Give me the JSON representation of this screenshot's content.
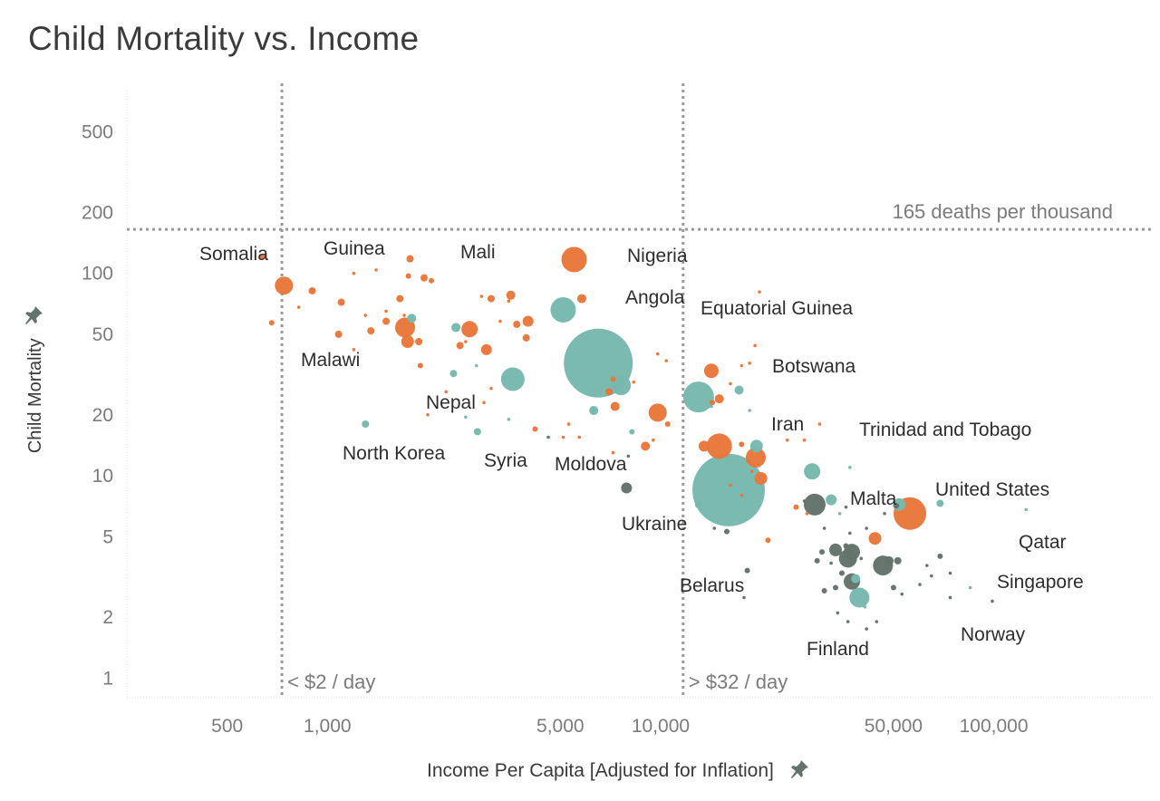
{
  "chart_data": {
    "type": "scatter",
    "title": "Child Mortality vs. Income",
    "xlabel": "Income Per Capita [Adjusted for Inflation]",
    "ylabel": "Child Mortality",
    "x_scale": "log",
    "y_scale": "log",
    "xlim": [
      250,
      300000
    ],
    "ylim": [
      0.8,
      800
    ],
    "x_ticks": [
      {
        "value": 500,
        "label": "500"
      },
      {
        "value": 1000,
        "label": "1,000"
      },
      {
        "value": 5000,
        "label": "5,000"
      },
      {
        "value": 10000,
        "label": "10,000"
      },
      {
        "value": 50000,
        "label": "50,000"
      },
      {
        "value": 100000,
        "label": "100,000"
      }
    ],
    "y_ticks": [
      {
        "value": 1,
        "label": "1"
      },
      {
        "value": 2,
        "label": "2"
      },
      {
        "value": 5,
        "label": "5"
      },
      {
        "value": 10,
        "label": "10"
      },
      {
        "value": 20,
        "label": "20"
      },
      {
        "value": 50,
        "label": "50"
      },
      {
        "value": 100,
        "label": "100"
      },
      {
        "value": 200,
        "label": "200"
      },
      {
        "value": 500,
        "label": "500"
      }
    ],
    "reference_lines": [
      {
        "axis": "x",
        "value": 730,
        "label": "< $2 / day"
      },
      {
        "axis": "x",
        "value": 11680,
        "label": "> $32 / day"
      },
      {
        "axis": "y",
        "value": 165,
        "label": "165 deaths per thousand"
      }
    ],
    "colors": {
      "orange": "#e8763a",
      "teal": "#77b8ad",
      "gray": "#62736a",
      "grid": "#e4e4e4",
      "ref": "#9a9a9a"
    },
    "points": [
      {
        "label": "Somalia",
        "x": 640,
        "y": 121,
        "size": 2,
        "color": "orange"
      },
      {
        "x": 740,
        "y": 87,
        "size": 9,
        "color": "orange"
      },
      {
        "x": 680,
        "y": 57,
        "size": 2,
        "color": "orange"
      },
      {
        "x": 820,
        "y": 68,
        "size": 1,
        "color": "orange"
      },
      {
        "x": 900,
        "y": 82,
        "size": 3,
        "color": "orange"
      },
      {
        "label": "Guinea",
        "x": 1200,
        "y": 100,
        "size": 1,
        "color": "orange"
      },
      {
        "x": 1100,
        "y": 72,
        "size": 3,
        "color": "orange"
      },
      {
        "x": 1300,
        "y": 62,
        "size": 1,
        "color": "orange"
      },
      {
        "x": 1500,
        "y": 58,
        "size": 3,
        "color": "orange"
      },
      {
        "x": 1350,
        "y": 52,
        "size": 3,
        "color": "orange"
      },
      {
        "x": 1500,
        "y": 65,
        "size": 1,
        "color": "orange"
      },
      {
        "x": 1700,
        "y": 62,
        "size": 1,
        "color": "orange"
      },
      {
        "x": 1400,
        "y": 104,
        "size": 1,
        "color": "orange"
      },
      {
        "label": "Mali",
        "x": 1770,
        "y": 118,
        "size": 3,
        "color": "orange"
      },
      {
        "x": 1750,
        "y": 97,
        "size": 2,
        "color": "orange"
      },
      {
        "x": 1950,
        "y": 95,
        "size": 3,
        "color": "orange"
      },
      {
        "x": 2050,
        "y": 92,
        "size": 2,
        "color": "orange"
      },
      {
        "x": 1650,
        "y": 75,
        "size": 3,
        "color": "orange"
      },
      {
        "x": 1790,
        "y": 60,
        "size": 4,
        "color": "teal"
      },
      {
        "x": 1710,
        "y": 54,
        "size": 10,
        "color": "orange"
      },
      {
        "x": 1740,
        "y": 46,
        "size": 6,
        "color": "orange"
      },
      {
        "x": 1880,
        "y": 46,
        "size": 3,
        "color": "orange"
      },
      {
        "label": "Malawi",
        "x": 1080,
        "y": 50,
        "size": 3,
        "color": "orange"
      },
      {
        "x": 1200,
        "y": 42,
        "size": 1,
        "color": "orange"
      },
      {
        "x": 1900,
        "y": 35,
        "size": 2,
        "color": "orange"
      },
      {
        "x": 2430,
        "y": 54,
        "size": 4,
        "color": "teal"
      },
      {
        "x": 2670,
        "y": 53,
        "size": 8,
        "color": "orange"
      },
      {
        "x": 2600,
        "y": 46,
        "size": 1,
        "color": "orange"
      },
      {
        "x": 2500,
        "y": 44,
        "size": 3,
        "color": "orange"
      },
      {
        "x": 3000,
        "y": 42,
        "size": 5,
        "color": "orange"
      },
      {
        "x": 2900,
        "y": 77,
        "size": 1,
        "color": "orange"
      },
      {
        "x": 3100,
        "y": 75,
        "size": 3,
        "color": "orange"
      },
      {
        "x": 3550,
        "y": 78,
        "size": 4,
        "color": "orange"
      },
      {
        "x": 3500,
        "y": 73,
        "size": 1,
        "color": "orange"
      },
      {
        "x": 3300,
        "y": 58,
        "size": 1,
        "color": "orange"
      },
      {
        "x": 3700,
        "y": 56,
        "size": 3,
        "color": "orange"
      },
      {
        "x": 4000,
        "y": 58,
        "size": 5,
        "color": "orange"
      },
      {
        "x": 3950,
        "y": 48,
        "size": 3,
        "color": "orange"
      },
      {
        "x": 3600,
        "y": 30,
        "size": 12,
        "color": "teal"
      },
      {
        "x": 2800,
        "y": 35,
        "size": 1,
        "color": "teal"
      },
      {
        "x": 2390,
        "y": 32,
        "size": 3,
        "color": "teal"
      },
      {
        "label": "Nepal",
        "x": 2270,
        "y": 26,
        "size": 1,
        "color": "orange"
      },
      {
        "x": 3100,
        "y": 27,
        "size": 1,
        "color": "orange"
      },
      {
        "x": 2950,
        "y": 23,
        "size": 1,
        "color": "orange"
      },
      {
        "label": "Syria",
        "x": 2820,
        "y": 16.5,
        "size": 3,
        "color": "teal"
      },
      {
        "x": 2600,
        "y": 19.5,
        "size": 1,
        "color": "teal"
      },
      {
        "x": 3500,
        "y": 19,
        "size": 1,
        "color": "teal"
      },
      {
        "label": "North Korea",
        "x": 1300,
        "y": 18,
        "size": 3,
        "color": "teal"
      },
      {
        "x": 2000,
        "y": 20,
        "size": 1,
        "color": "orange"
      },
      {
        "label": "Nigeria",
        "x": 5500,
        "y": 117,
        "size": 13,
        "color": "orange"
      },
      {
        "label": "Angola",
        "x": 5800,
        "y": 75,
        "size": 4,
        "color": "orange"
      },
      {
        "x": 5100,
        "y": 66,
        "size": 13,
        "color": "teal"
      },
      {
        "x": 4200,
        "y": 17,
        "size": 2,
        "color": "orange"
      },
      {
        "x": 4600,
        "y": 15.5,
        "size": 1,
        "color": "gray"
      },
      {
        "x": 5100,
        "y": 15.5,
        "size": 1,
        "color": "orange"
      },
      {
        "x": 5300,
        "y": 18,
        "size": 1,
        "color": "orange"
      },
      {
        "x": 6500,
        "y": 36,
        "size": 37,
        "color": "teal"
      },
      {
        "x": 7200,
        "y": 30,
        "size": 2,
        "color": "orange"
      },
      {
        "x": 7600,
        "y": 28,
        "size": 10,
        "color": "teal"
      },
      {
        "x": 7000,
        "y": 26,
        "size": 3,
        "color": "orange"
      },
      {
        "x": 7300,
        "y": 22,
        "size": 4,
        "color": "orange"
      },
      {
        "x": 6300,
        "y": 21,
        "size": 4,
        "color": "teal"
      },
      {
        "label": "Moldova",
        "x": 7200,
        "y": 13,
        "size": 1,
        "color": "orange"
      },
      {
        "x": 5700,
        "y": 15.5,
        "size": 1,
        "color": "orange"
      },
      {
        "x": 8000,
        "y": 12.5,
        "size": 1,
        "color": "gray"
      },
      {
        "x": 8200,
        "y": 16.5,
        "size": 2,
        "color": "teal"
      },
      {
        "label": "Ukraine",
        "x": 7900,
        "y": 8.7,
        "size": 5,
        "color": "gray"
      },
      {
        "x": 9000,
        "y": 14,
        "size": 4,
        "color": "orange"
      },
      {
        "x": 9500,
        "y": 15,
        "size": 1,
        "color": "orange"
      },
      {
        "x": 9800,
        "y": 20.5,
        "size": 9,
        "color": "orange"
      },
      {
        "x": 10500,
        "y": 18,
        "size": 2,
        "color": "orange"
      },
      {
        "x": 9800,
        "y": 40,
        "size": 1,
        "color": "orange"
      },
      {
        "x": 10400,
        "y": 37,
        "size": 1,
        "color": "orange"
      },
      {
        "x": 8300,
        "y": 29,
        "size": 1,
        "color": "orange"
      },
      {
        "label": "Equatorial Guinea",
        "x": 19800,
        "y": 81,
        "size": 1,
        "color": "orange"
      },
      {
        "x": 13000,
        "y": 24.5,
        "size": 16,
        "color": "teal"
      },
      {
        "x": 14200,
        "y": 33,
        "size": 7,
        "color": "orange"
      },
      {
        "x": 15000,
        "y": 24,
        "size": 4,
        "color": "orange"
      },
      {
        "x": 14300,
        "y": 23,
        "size": 2,
        "color": "orange"
      },
      {
        "x": 16200,
        "y": 28.5,
        "size": 1,
        "color": "orange"
      },
      {
        "x": 17200,
        "y": 26.5,
        "size": 4,
        "color": "teal"
      },
      {
        "x": 18500,
        "y": 21,
        "size": 1,
        "color": "teal"
      },
      {
        "x": 17500,
        "y": 35,
        "size": 1,
        "color": "orange"
      },
      {
        "label": "Botswana",
        "x": 18500,
        "y": 36,
        "size": 1,
        "color": "orange"
      },
      {
        "x": 19200,
        "y": 44,
        "size": 1,
        "color": "orange"
      },
      {
        "x": 14200,
        "y": 22,
        "size": 1,
        "color": "teal"
      },
      {
        "x": 13500,
        "y": 14,
        "size": 5,
        "color": "orange"
      },
      {
        "x": 15000,
        "y": 14,
        "size": 13,
        "color": "orange"
      },
      {
        "label": "Iran",
        "x": 19400,
        "y": 14,
        "size": 6,
        "color": "teal"
      },
      {
        "x": 19300,
        "y": 12.3,
        "size": 10,
        "color": "orange"
      },
      {
        "x": 17500,
        "y": 14.3,
        "size": 2,
        "color": "orange"
      },
      {
        "x": 18800,
        "y": 10.5,
        "size": 1,
        "color": "orange"
      },
      {
        "x": 16000,
        "y": 8.5,
        "size": 39,
        "color": "teal"
      },
      {
        "x": 20000,
        "y": 9.7,
        "size": 6,
        "color": "orange"
      },
      {
        "x": 16200,
        "y": 9,
        "size": 1,
        "color": "orange"
      },
      {
        "x": 17500,
        "y": 8,
        "size": 1,
        "color": "orange"
      },
      {
        "x": 13000,
        "y": 7.2,
        "size": 3,
        "color": "teal"
      },
      {
        "x": 14500,
        "y": 5.5,
        "size": 1,
        "color": "gray"
      },
      {
        "x": 15800,
        "y": 5.3,
        "size": 2,
        "color": "gray"
      },
      {
        "label": "Belarus",
        "x": 18200,
        "y": 3.4,
        "size": 2,
        "color": "gray"
      },
      {
        "x": 17800,
        "y": 2.5,
        "size": 1,
        "color": "gray"
      },
      {
        "x": 21000,
        "y": 4.8,
        "size": 2,
        "color": "orange"
      },
      {
        "x": 24000,
        "y": 15,
        "size": 1,
        "color": "orange"
      },
      {
        "x": 27000,
        "y": 15,
        "size": 1,
        "color": "orange"
      },
      {
        "label": "Trinidad and Tobago",
        "x": 30000,
        "y": 18,
        "size": 1,
        "color": "orange"
      },
      {
        "x": 28500,
        "y": 10.5,
        "size": 8,
        "color": "teal"
      },
      {
        "x": 29000,
        "y": 7.2,
        "size": 11,
        "color": "gray"
      },
      {
        "x": 27000,
        "y": 7.5,
        "size": 1,
        "color": "gray"
      },
      {
        "label": "Malta",
        "x": 32500,
        "y": 7.6,
        "size": 5,
        "color": "teal"
      },
      {
        "x": 25500,
        "y": 7,
        "size": 2,
        "color": "orange"
      },
      {
        "x": 27500,
        "y": 6.5,
        "size": 1,
        "color": "orange"
      },
      {
        "x": 31000,
        "y": 5.5,
        "size": 1,
        "color": "gray"
      },
      {
        "x": 33500,
        "y": 4.3,
        "size": 6,
        "color": "gray"
      },
      {
        "x": 30500,
        "y": 4.2,
        "size": 2,
        "color": "gray"
      },
      {
        "x": 29500,
        "y": 3.8,
        "size": 2,
        "color": "gray"
      },
      {
        "x": 32500,
        "y": 3.7,
        "size": 1,
        "color": "gray"
      },
      {
        "x": 37000,
        "y": 11,
        "size": 1,
        "color": "teal"
      },
      {
        "x": 36000,
        "y": 7,
        "size": 1,
        "color": "gray"
      },
      {
        "x": 34500,
        "y": 6.5,
        "size": 1,
        "color": "teal"
      },
      {
        "x": 37000,
        "y": 5.2,
        "size": 1,
        "color": "gray"
      },
      {
        "x": 36000,
        "y": 4.5,
        "size": 2,
        "color": "gray"
      },
      {
        "x": 37500,
        "y": 4.2,
        "size": 8,
        "color": "gray"
      },
      {
        "x": 36500,
        "y": 3.9,
        "size": 9,
        "color": "gray"
      },
      {
        "x": 40000,
        "y": 3.9,
        "size": 1,
        "color": "gray"
      },
      {
        "x": 41500,
        "y": 5.5,
        "size": 1,
        "color": "gray"
      },
      {
        "x": 44000,
        "y": 4.9,
        "size": 6,
        "color": "orange"
      },
      {
        "x": 46500,
        "y": 3.6,
        "size": 10,
        "color": "gray"
      },
      {
        "x": 48500,
        "y": 3.8,
        "size": 4,
        "color": "gray"
      },
      {
        "x": 51500,
        "y": 3.8,
        "size": 3,
        "color": "gray"
      },
      {
        "x": 47000,
        "y": 6.5,
        "size": 1,
        "color": "gray"
      },
      {
        "x": 51000,
        "y": 7.1,
        "size": 2,
        "color": "gray"
      },
      {
        "label": "United States",
        "x": 56000,
        "y": 6.5,
        "size": 17,
        "color": "orange"
      },
      {
        "x": 52000,
        "y": 7.2,
        "size": 6,
        "color": "teal"
      },
      {
        "x": 69000,
        "y": 7.3,
        "size": 3,
        "color": "teal"
      },
      {
        "x": 69000,
        "y": 4,
        "size": 2,
        "color": "gray"
      },
      {
        "x": 63000,
        "y": 3.6,
        "size": 1,
        "color": "gray"
      },
      {
        "x": 74000,
        "y": 3.3,
        "size": 1,
        "color": "gray"
      },
      {
        "x": 50000,
        "y": 2.8,
        "size": 2,
        "color": "gray"
      },
      {
        "x": 53000,
        "y": 2.6,
        "size": 1,
        "color": "gray"
      },
      {
        "x": 60000,
        "y": 2.9,
        "size": 1,
        "color": "gray"
      },
      {
        "x": 65000,
        "y": 3.2,
        "size": 1,
        "color": "gray"
      },
      {
        "label": "Qatar",
        "x": 125000,
        "y": 6.8,
        "size": 1,
        "color": "teal"
      },
      {
        "label": "Singapore",
        "x": 85000,
        "y": 2.8,
        "size": 1,
        "color": "teal"
      },
      {
        "label": "Norway",
        "x": 99000,
        "y": 2.4,
        "size": 1,
        "color": "gray"
      },
      {
        "x": 74000,
        "y": 2.5,
        "size": 1,
        "color": "gray"
      },
      {
        "label": "Finland",
        "x": 41500,
        "y": 1.75,
        "size": 1,
        "color": "gray"
      },
      {
        "x": 39500,
        "y": 2.5,
        "size": 10,
        "color": "teal"
      },
      {
        "x": 38500,
        "y": 3.1,
        "size": 4,
        "color": "teal"
      },
      {
        "x": 37500,
        "y": 3,
        "size": 8,
        "color": "gray"
      },
      {
        "x": 35000,
        "y": 3.3,
        "size": 2,
        "color": "gray"
      },
      {
        "x": 33500,
        "y": 2.8,
        "size": 2,
        "color": "gray"
      },
      {
        "x": 31000,
        "y": 2.7,
        "size": 2,
        "color": "gray"
      },
      {
        "x": 34000,
        "y": 2.1,
        "size": 1,
        "color": "gray"
      },
      {
        "x": 36500,
        "y": 1.9,
        "size": 1,
        "color": "gray"
      },
      {
        "x": 41000,
        "y": 2.25,
        "size": 1,
        "color": "teal"
      },
      {
        "x": 44500,
        "y": 1.9,
        "size": 1,
        "color": "gray"
      }
    ],
    "labels": [
      {
        "text": "Somalia"
      },
      {
        "text": "Guinea"
      },
      {
        "text": "Mali"
      },
      {
        "text": "Nigeria"
      },
      {
        "text": "Angola"
      },
      {
        "text": "Equatorial Guinea"
      },
      {
        "text": "Malawi"
      },
      {
        "text": "Botswana"
      },
      {
        "text": "Nepal"
      },
      {
        "text": "Iran"
      },
      {
        "text": "Trinidad and Tobago"
      },
      {
        "text": "North Korea"
      },
      {
        "text": "Syria"
      },
      {
        "text": "Moldova"
      },
      {
        "text": "United States"
      },
      {
        "text": "Malta"
      },
      {
        "text": "Ukraine"
      },
      {
        "text": "Qatar"
      },
      {
        "text": "Singapore"
      },
      {
        "text": "Belarus"
      },
      {
        "text": "Norway"
      },
      {
        "text": "Finland"
      }
    ]
  }
}
